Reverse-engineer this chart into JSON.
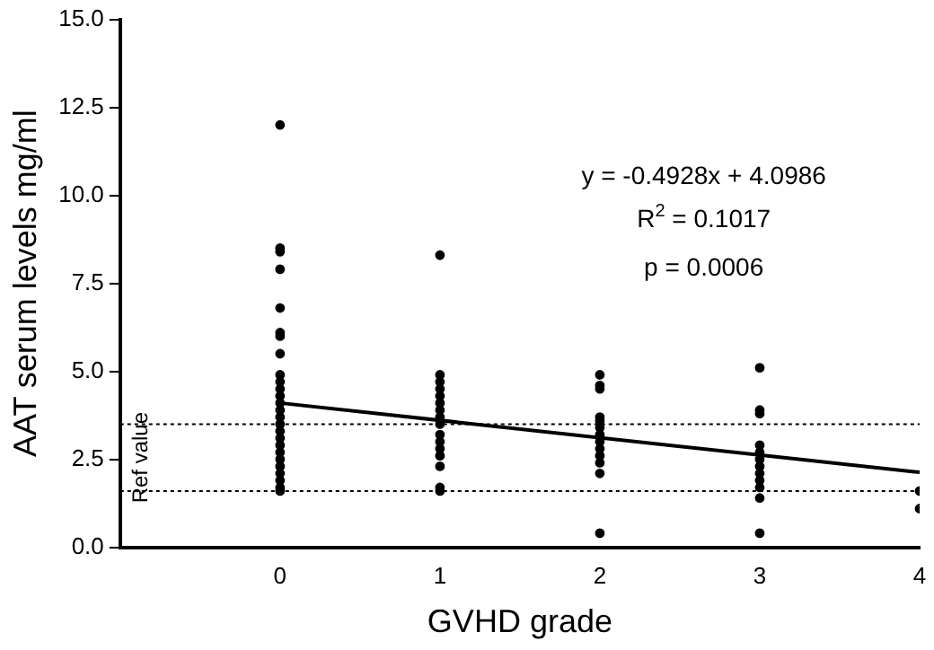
{
  "chart_data": {
    "type": "scatter",
    "xlabel": "GVHD grade",
    "ylabel": "AAT serum levels mg/ml",
    "xlim": [
      -1,
      4
    ],
    "xticks": [
      0,
      1,
      2,
      3,
      4
    ],
    "ylim": [
      0,
      15
    ],
    "yticks": [
      {
        "value": 0,
        "label": "0.0"
      },
      {
        "value": 2.5,
        "label": "2.5"
      },
      {
        "value": 5,
        "label": "5.0"
      },
      {
        "value": 7.5,
        "label": "7.5"
      },
      {
        "value": 10,
        "label": "10.0"
      },
      {
        "value": 12.5,
        "label": "12.5"
      },
      {
        "value": 15,
        "label": "15.0"
      }
    ],
    "grid": false,
    "marker": "circle",
    "series": [
      {
        "color": "#000000",
        "x": [
          0,
          0,
          0,
          0,
          0,
          0,
          0,
          0,
          0,
          0,
          0,
          0,
          0,
          0,
          0,
          0,
          0,
          0,
          0,
          0,
          0,
          0,
          0,
          0,
          0,
          0,
          1,
          1,
          1,
          1,
          1,
          1,
          1,
          1,
          1,
          1,
          1,
          1,
          1,
          1,
          1,
          1,
          2,
          2,
          2,
          2,
          2,
          2,
          2,
          2,
          2,
          2,
          2,
          2,
          2,
          3,
          3,
          3,
          3,
          3,
          3,
          3,
          3,
          3,
          3,
          3,
          3,
          4,
          4
        ],
        "values": [
          12.0,
          8.5,
          8.4,
          7.9,
          6.8,
          6.1,
          6.0,
          5.5,
          4.9,
          4.7,
          4.5,
          4.3,
          4.1,
          3.9,
          3.7,
          3.5,
          3.3,
          3.1,
          2.9,
          2.7,
          2.5,
          2.3,
          2.1,
          1.9,
          1.7,
          1.6,
          8.3,
          4.9,
          4.7,
          4.5,
          4.3,
          4.1,
          3.9,
          3.7,
          3.5,
          3.2,
          3.0,
          2.8,
          2.6,
          2.3,
          1.7,
          1.6,
          4.9,
          4.6,
          4.5,
          3.7,
          3.6,
          3.4,
          3.2,
          3.0,
          2.8,
          2.6,
          2.4,
          2.1,
          0.4,
          5.1,
          3.9,
          3.8,
          2.9,
          2.7,
          2.5,
          2.3,
          2.1,
          1.9,
          1.7,
          1.4,
          0.4,
          1.6,
          1.1
        ]
      },
      {
        "type": "line",
        "color": "#000000",
        "marker": "none",
        "line_style": "solid",
        "x": [
          0,
          4
        ],
        "values": [
          4.1,
          2.13
        ]
      }
    ],
    "ref_lines": [
      {
        "axis": "y",
        "value": 3.5,
        "label": "Ref value",
        "line_style": "dotted",
        "color": "#000000"
      },
      {
        "axis": "y",
        "value": 1.6,
        "line_style": "dotted",
        "color": "#000000"
      }
    ],
    "annotations": [
      "y = -0.4928x + 4.0986",
      "R$^{2}$ = 0.1017",
      "p = 0.0006"
    ]
  }
}
